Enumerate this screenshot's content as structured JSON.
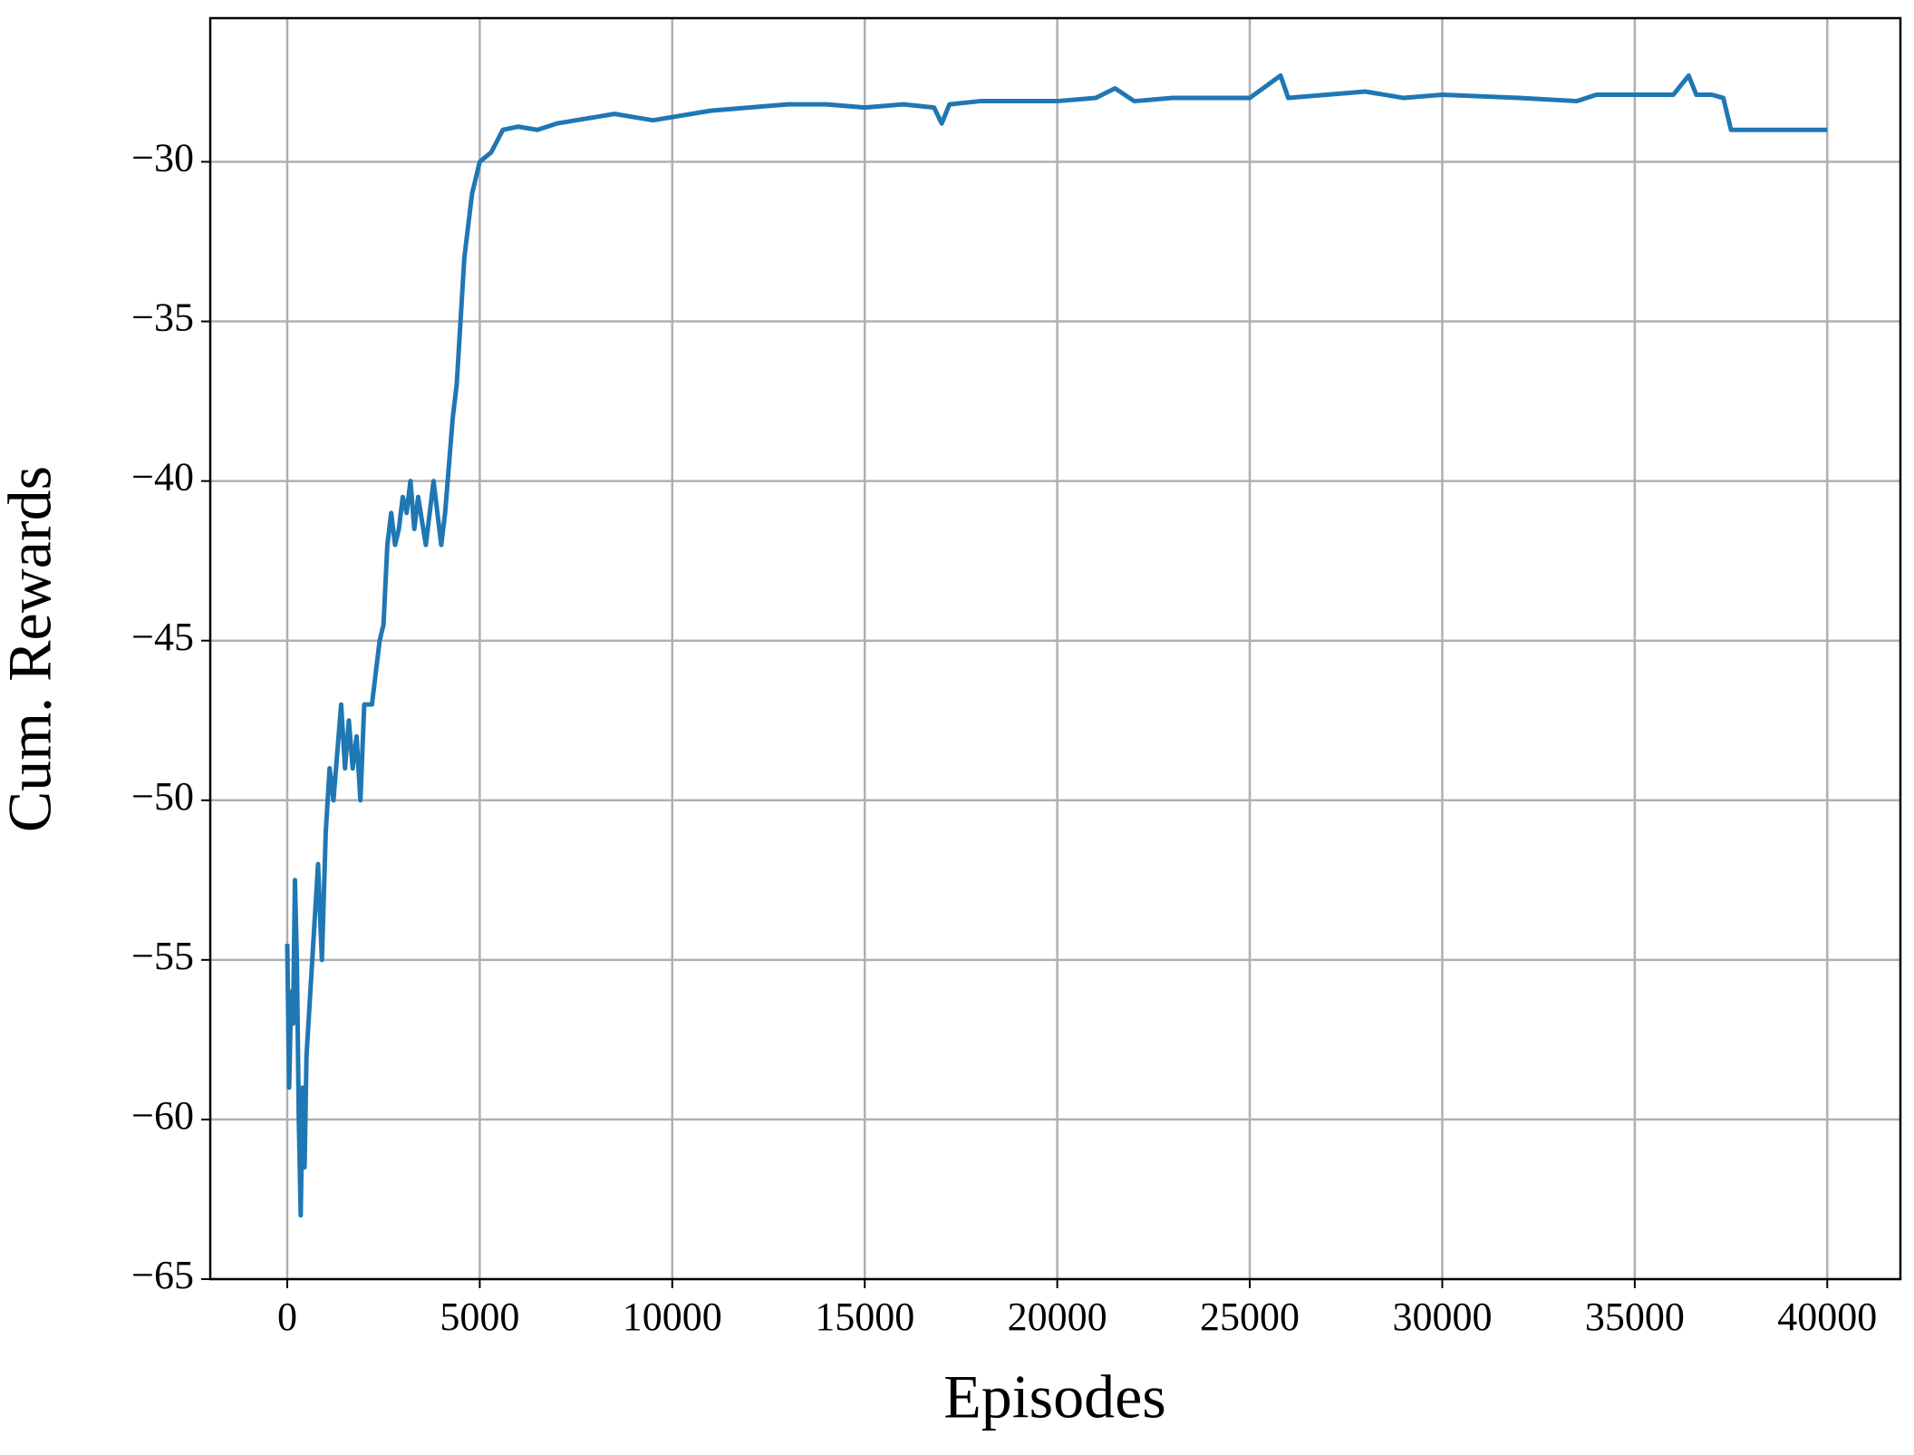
{
  "chart_data": {
    "type": "line",
    "xlabel": "Episodes",
    "ylabel": "Cum. Rewards",
    "color": "#1f77b4",
    "grid": true,
    "xlim": [
      -2000,
      41900
    ],
    "ylim": [
      -65,
      -25.5
    ],
    "xticks": [
      0,
      5000,
      10000,
      15000,
      20000,
      25000,
      30000,
      35000,
      40000
    ],
    "yticks": [
      {
        "value": -65,
        "label": "−65"
      },
      {
        "value": -60,
        "label": "−60"
      },
      {
        "value": -55,
        "label": "−55"
      },
      {
        "value": -50,
        "label": "−50"
      },
      {
        "value": -45,
        "label": "−45"
      },
      {
        "value": -40,
        "label": "−40"
      },
      {
        "value": -35,
        "label": "−35"
      },
      {
        "value": -30,
        "label": "−30"
      }
    ],
    "x": [
      0,
      50,
      100,
      150,
      200,
      250,
      300,
      350,
      400,
      450,
      500,
      600,
      700,
      800,
      900,
      1000,
      1100,
      1200,
      1300,
      1400,
      1500,
      1600,
      1700,
      1800,
      1900,
      2000,
      2200,
      2300,
      2400,
      2500,
      2600,
      2700,
      2800,
      2900,
      3000,
      3100,
      3200,
      3300,
      3400,
      3600,
      3700,
      3800,
      3900,
      4000,
      4100,
      4200,
      4300,
      4400,
      4500,
      4600,
      4700,
      4800,
      4900,
      5000,
      5300,
      5600,
      6000,
      6500,
      7000,
      7500,
      8000,
      8500,
      9000,
      9500,
      10000,
      10500,
      11000,
      12000,
      13000,
      14000,
      15000,
      16000,
      16800,
      17000,
      17200,
      18000,
      19000,
      20000,
      21000,
      21500,
      22000,
      23000,
      24000,
      25000,
      25800,
      26000,
      27000,
      28000,
      29000,
      30000,
      32000,
      33500,
      34000,
      35000,
      36000,
      36400,
      36600,
      37000,
      37300,
      37500,
      38000,
      39000,
      40000
    ],
    "values": [
      -54.5,
      -59,
      -56,
      -57,
      -52.5,
      -55,
      -60,
      -63,
      -59,
      -61.5,
      -58,
      -56,
      -54,
      -52,
      -55,
      -51,
      -49,
      -50,
      -48.5,
      -47,
      -49,
      -47.5,
      -49,
      -48,
      -50,
      -47,
      -47,
      -46,
      -45,
      -44.5,
      -42,
      -41,
      -42,
      -41.5,
      -40.5,
      -41,
      -40,
      -41.5,
      -40.5,
      -42,
      -41,
      -40,
      -41,
      -42,
      -41,
      -39.5,
      -38,
      -37,
      -35,
      -33,
      -32,
      -31,
      -30.5,
      -30,
      -29.7,
      -29,
      -28.9,
      -29,
      -28.8,
      -28.7,
      -28.6,
      -28.5,
      -28.6,
      -28.7,
      -28.6,
      -28.5,
      -28.4,
      -28.3,
      -28.2,
      -28.2,
      -28.3,
      -28.2,
      -28.3,
      -28.8,
      -28.2,
      -28.1,
      -28.1,
      -28.1,
      -28.0,
      -27.7,
      -28.1,
      -28.0,
      -28.0,
      -28.0,
      -27.3,
      -28.0,
      -27.9,
      -27.8,
      -28.0,
      -27.9,
      -28.0,
      -28.1,
      -27.9,
      -27.9,
      -27.9,
      -27.3,
      -27.9,
      -27.9,
      -28.0,
      -29.0,
      -29.0,
      -29.0,
      -29.0
    ]
  }
}
